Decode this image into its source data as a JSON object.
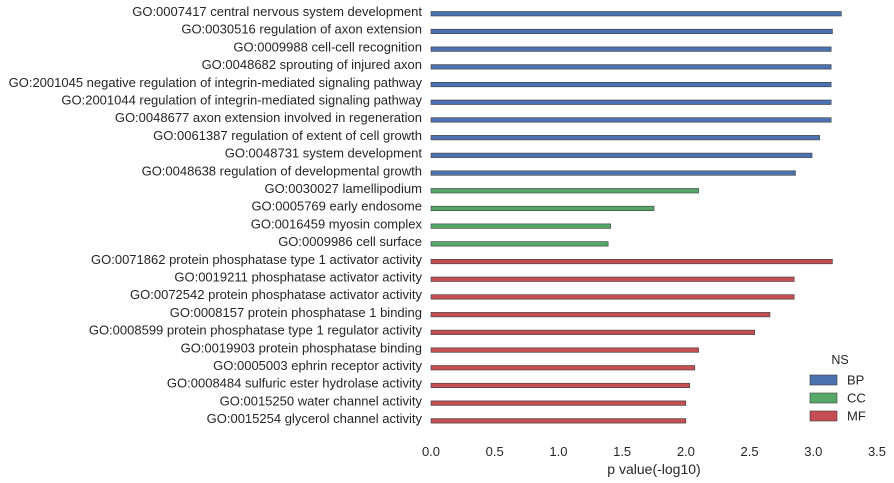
{
  "chart_data": {
    "type": "bar",
    "orientation": "horizontal",
    "xlabel": "p value(-log10)",
    "ylabel": "",
    "xlim": [
      0,
      3.5
    ],
    "xticks": [
      "0.0",
      "0.5",
      "1.0",
      "1.5",
      "2.0",
      "2.5",
      "3.0",
      "3.5"
    ],
    "grid": false,
    "legend": {
      "title": "NS",
      "position": "bottom-right",
      "entries": [
        {
          "label": "BP",
          "color": "#4c72b0"
        },
        {
          "label": "CC",
          "color": "#55a868"
        },
        {
          "label": "MF",
          "color": "#c44e52"
        }
      ]
    },
    "categories": [
      "GO:0007417 central nervous system development",
      "GO:0030516 regulation of axon extension",
      "GO:0009988 cell-cell recognition",
      "GO:0048682 sprouting of injured axon",
      "GO:2001045 negative regulation of integrin-mediated signaling pathway",
      "GO:2001044 regulation of integrin-mediated signaling pathway",
      "GO:0048677 axon extension involved in regeneration",
      "GO:0061387 regulation of extent of cell growth",
      "GO:0048731 system development",
      "GO:0048638 regulation of developmental growth",
      "GO:0030027 lamellipodium",
      "GO:0005769 early endosome",
      "GO:0016459 myosin complex",
      "GO:0009986 cell surface",
      "GO:0071862 protein phosphatase type 1 activator activity",
      "GO:0019211 phosphatase activator activity",
      "GO:0072542 protein phosphatase activator activity",
      "GO:0008157 protein phosphatase 1 binding",
      "GO:0008599 protein phosphatase type 1 regulator activity",
      "GO:0019903 protein phosphatase binding",
      "GO:0005003 ephrin receptor activity",
      "GO:0008484 sulfuric ester hydrolase activity",
      "GO:0015250 water channel activity",
      "GO:0015254 glycerol channel activity"
    ],
    "values": [
      3.22,
      3.15,
      3.14,
      3.14,
      3.14,
      3.14,
      3.14,
      3.05,
      2.99,
      2.86,
      2.1,
      1.75,
      1.41,
      1.39,
      3.15,
      2.85,
      2.85,
      2.66,
      2.54,
      2.1,
      2.07,
      2.03,
      2.0,
      2.0
    ],
    "groups": [
      "BP",
      "BP",
      "BP",
      "BP",
      "BP",
      "BP",
      "BP",
      "BP",
      "BP",
      "BP",
      "CC",
      "CC",
      "CC",
      "CC",
      "MF",
      "MF",
      "MF",
      "MF",
      "MF",
      "MF",
      "MF",
      "MF",
      "MF",
      "MF"
    ]
  }
}
